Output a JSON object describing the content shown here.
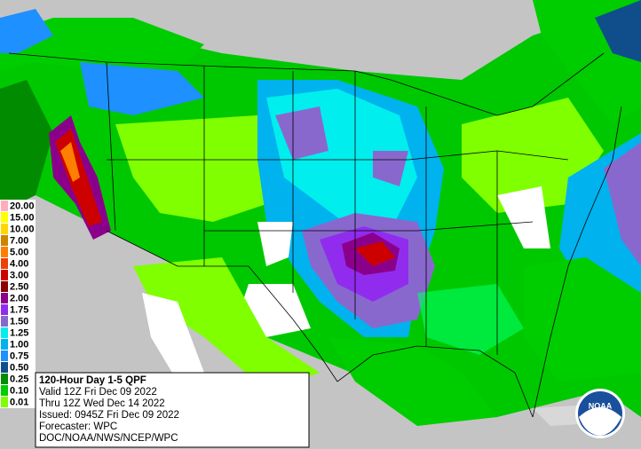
{
  "legend": [
    {
      "label": "20.00",
      "color": "#ffaeb9"
    },
    {
      "label": "15.00",
      "color": "#ffff00"
    },
    {
      "label": "10.00",
      "color": "#ffd700"
    },
    {
      "label": "7.00",
      "color": "#cd8500"
    },
    {
      "label": "5.00",
      "color": "#ff7f00"
    },
    {
      "label": "4.00",
      "color": "#ee4000"
    },
    {
      "label": "3.00",
      "color": "#cd0000"
    },
    {
      "label": "2.50",
      "color": "#8b0000"
    },
    {
      "label": "2.00",
      "color": "#8b008b"
    },
    {
      "label": "1.75",
      "color": "#912cee"
    },
    {
      "label": "1.50",
      "color": "#8968cd"
    },
    {
      "label": "1.25",
      "color": "#00eeee"
    },
    {
      "label": "1.00",
      "color": "#00b2ee"
    },
    {
      "label": "0.75",
      "color": "#1e90ff"
    },
    {
      "label": "0.50",
      "color": "#104e8b"
    },
    {
      "label": "0.25",
      "color": "#008b00"
    },
    {
      "label": "0.10",
      "color": "#00cd00"
    },
    {
      "label": "0.01",
      "color": "#7fff00"
    }
  ],
  "info": {
    "title": "120-Hour Day 1-5 QPF",
    "lines": [
      "Valid 12Z Fri Dec 09 2022",
      "Thru 12Z Wed Dec 14 2022",
      "Issued: 0945Z Fri Dec 09 2022",
      "Forecaster: WPC",
      "DOC/NOAA/NWS/NCEP/WPC"
    ]
  },
  "logo": "NOAA"
}
